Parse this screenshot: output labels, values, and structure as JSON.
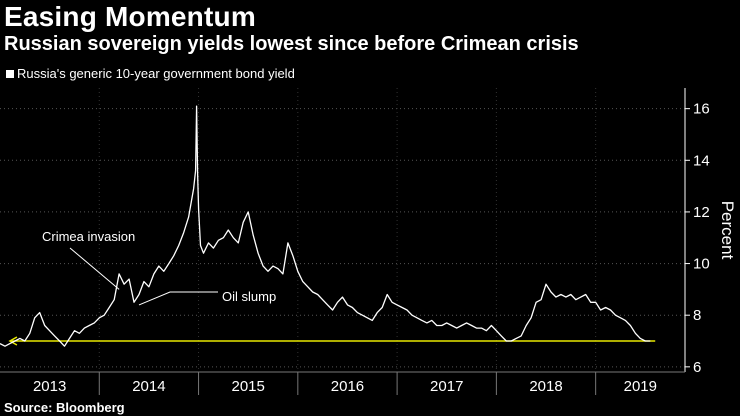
{
  "chart_data": {
    "type": "line",
    "title": "Easing Momentum",
    "subtitle": "Russian sovereign yields lowest since before Crimean crisis",
    "legend": "Russia's generic 10-year government bond yield",
    "ylabel": "Percent",
    "xlabel": "",
    "ylim": [
      5.8,
      16.8
    ],
    "xlim": [
      2013.0,
      2019.9
    ],
    "yticks": [
      6,
      8,
      10,
      12,
      14,
      16
    ],
    "xtick_labels": [
      "2013",
      "2014",
      "2015",
      "2016",
      "2017",
      "2018",
      "2019"
    ],
    "grid": true,
    "series": [
      {
        "name": "Russia's generic 10-year government bond yield",
        "x": [
          2013.0,
          2013.05,
          2013.1,
          2013.15,
          2013.2,
          2013.25,
          2013.3,
          2013.35,
          2013.4,
          2013.45,
          2013.5,
          2013.55,
          2013.6,
          2013.65,
          2013.7,
          2013.75,
          2013.8,
          2013.85,
          2013.9,
          2013.95,
          2014.0,
          2014.05,
          2014.1,
          2014.15,
          2014.2,
          2014.25,
          2014.3,
          2014.35,
          2014.4,
          2014.45,
          2014.5,
          2014.55,
          2014.6,
          2014.65,
          2014.7,
          2014.75,
          2014.8,
          2014.85,
          2014.9,
          2014.95,
          2014.97,
          2014.98,
          2014.99,
          2015.0,
          2015.02,
          2015.05,
          2015.1,
          2015.15,
          2015.2,
          2015.25,
          2015.3,
          2015.35,
          2015.4,
          2015.45,
          2015.5,
          2015.55,
          2015.6,
          2015.65,
          2015.7,
          2015.75,
          2015.8,
          2015.85,
          2015.9,
          2015.95,
          2016.0,
          2016.05,
          2016.1,
          2016.15,
          2016.2,
          2016.25,
          2016.3,
          2016.35,
          2016.4,
          2016.45,
          2016.5,
          2016.55,
          2016.6,
          2016.65,
          2016.7,
          2016.75,
          2016.8,
          2016.85,
          2016.9,
          2016.95,
          2017.0,
          2017.05,
          2017.1,
          2017.15,
          2017.2,
          2017.25,
          2017.3,
          2017.35,
          2017.4,
          2017.45,
          2017.5,
          2017.55,
          2017.6,
          2017.65,
          2017.7,
          2017.75,
          2017.8,
          2017.85,
          2017.9,
          2017.95,
          2018.0,
          2018.05,
          2018.1,
          2018.15,
          2018.2,
          2018.25,
          2018.3,
          2018.35,
          2018.4,
          2018.45,
          2018.5,
          2018.55,
          2018.6,
          2018.65,
          2018.7,
          2018.75,
          2018.8,
          2018.85,
          2018.9,
          2018.95,
          2019.0,
          2019.05,
          2019.1,
          2019.15,
          2019.2,
          2019.25,
          2019.3,
          2019.35,
          2019.4,
          2019.45,
          2019.5,
          2019.55
        ],
        "values": [
          6.9,
          6.8,
          6.9,
          7.0,
          7.1,
          7.0,
          7.3,
          7.9,
          8.1,
          7.6,
          7.4,
          7.2,
          7.0,
          6.8,
          7.1,
          7.4,
          7.3,
          7.5,
          7.6,
          7.7,
          7.9,
          8.0,
          8.3,
          8.6,
          9.6,
          9.2,
          9.4,
          8.5,
          8.8,
          9.3,
          9.1,
          9.6,
          9.9,
          9.7,
          10.0,
          10.3,
          10.7,
          11.2,
          11.8,
          12.9,
          13.6,
          16.1,
          13.5,
          12.1,
          10.7,
          10.4,
          10.8,
          10.6,
          10.9,
          11.0,
          11.3,
          11.0,
          10.8,
          11.6,
          12.0,
          11.1,
          10.4,
          9.9,
          9.7,
          9.9,
          9.8,
          9.6,
          10.8,
          10.3,
          9.7,
          9.3,
          9.1,
          8.9,
          8.8,
          8.6,
          8.4,
          8.2,
          8.5,
          8.7,
          8.4,
          8.3,
          8.1,
          8.0,
          7.9,
          7.8,
          8.1,
          8.3,
          8.8,
          8.5,
          8.4,
          8.3,
          8.2,
          8.0,
          7.9,
          7.8,
          7.7,
          7.8,
          7.6,
          7.6,
          7.7,
          7.6,
          7.5,
          7.6,
          7.7,
          7.6,
          7.5,
          7.5,
          7.4,
          7.6,
          7.4,
          7.2,
          7.0,
          7.0,
          7.1,
          7.2,
          7.6,
          7.9,
          8.5,
          8.6,
          9.2,
          8.9,
          8.7,
          8.8,
          8.7,
          8.8,
          8.6,
          8.7,
          8.8,
          8.5,
          8.5,
          8.2,
          8.3,
          8.2,
          8.0,
          7.9,
          7.8,
          7.6,
          7.3,
          7.1,
          7.0,
          7.0
        ]
      }
    ],
    "reference_line": {
      "value": 7.0,
      "from": 2013.1,
      "to": 2019.6,
      "color": "#e8e800"
    },
    "annotations": [
      {
        "text": "Crimea invasion",
        "x": 2014.2,
        "y": 9.0
      },
      {
        "text": "Oil slump",
        "x": 2014.4,
        "y": 8.4
      }
    ]
  },
  "source": "Source: Bloomberg",
  "colors": {
    "background": "#000000",
    "line": "#ffffff",
    "reference": "#e8e800",
    "grid": "#555555"
  }
}
